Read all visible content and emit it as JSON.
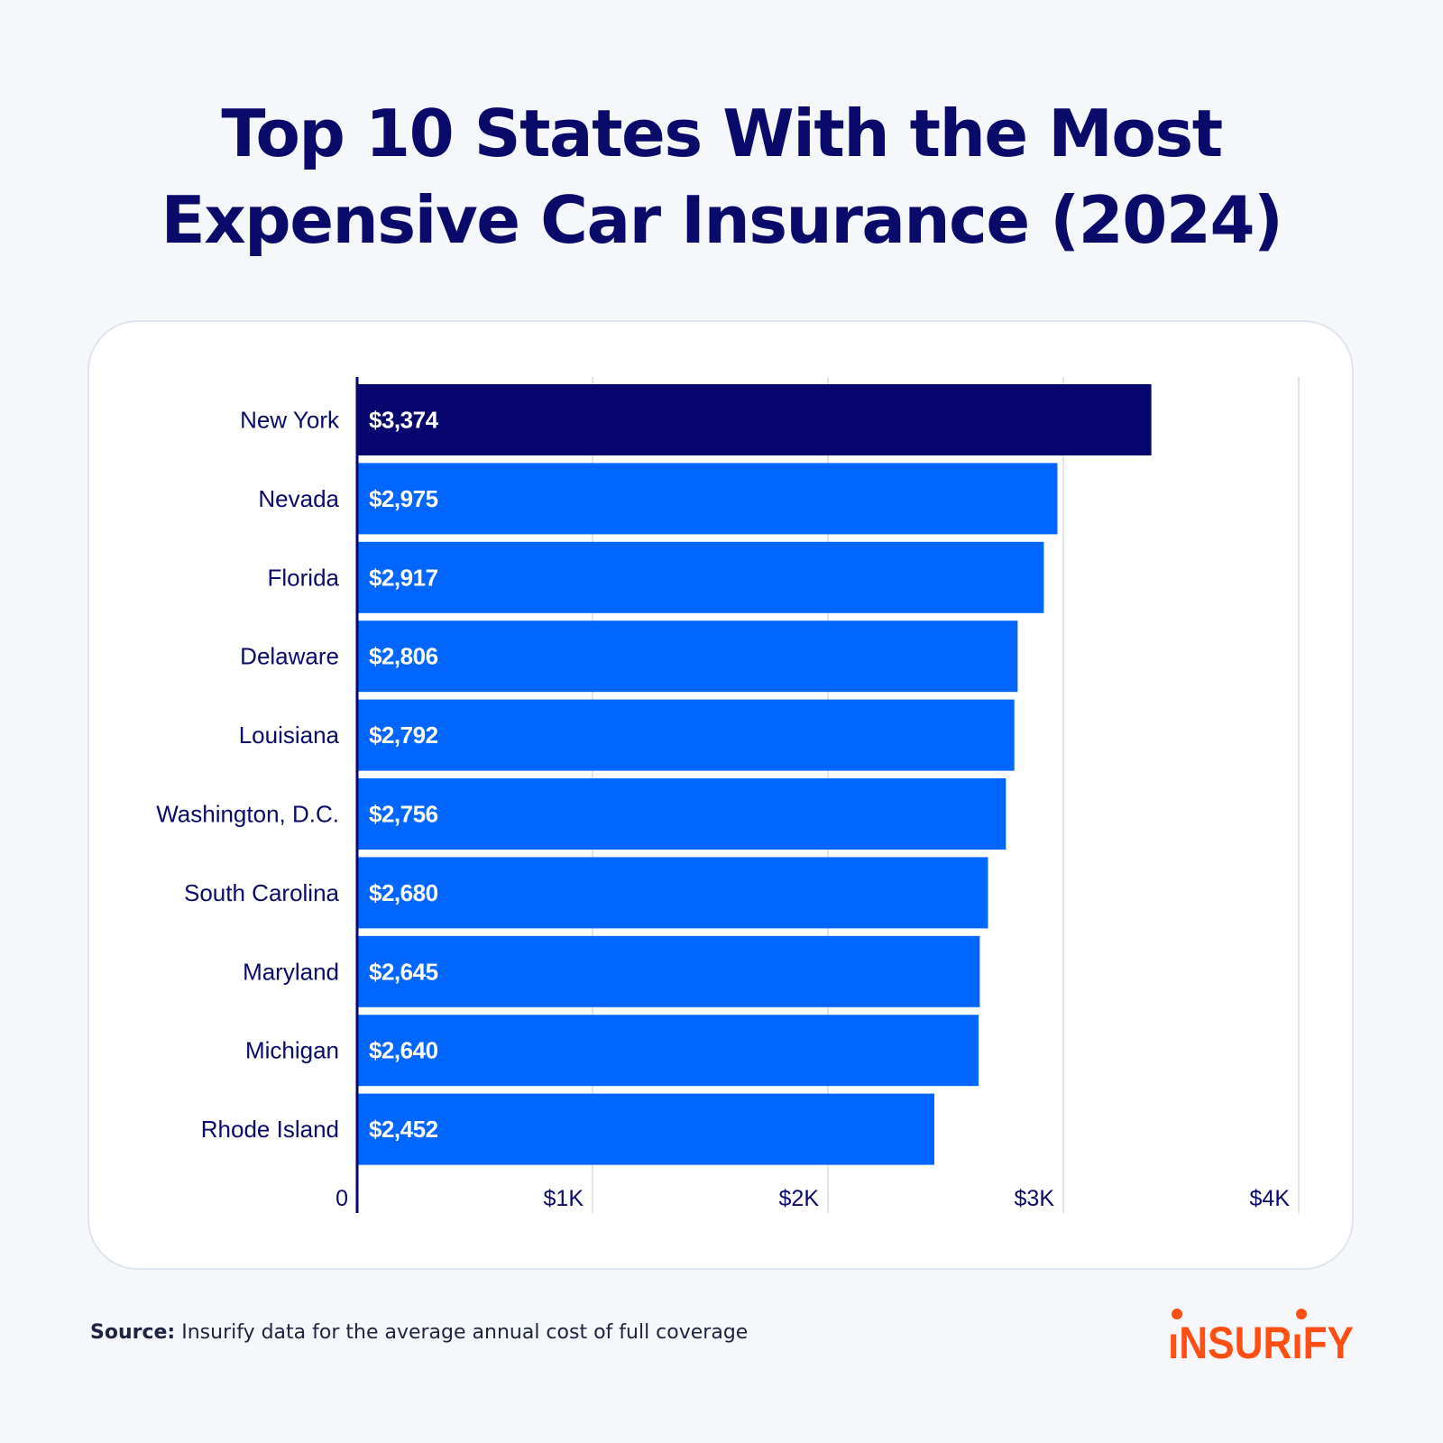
{
  "title_lines": [
    "Top 10 States With the Most",
    "Expensive Car Insurance (2024)"
  ],
  "chart_data": {
    "type": "bar",
    "orientation": "horizontal",
    "title": "Top 10 States With the Most Expensive Car Insurance (2024)",
    "categories": [
      "New York",
      "Nevada",
      "Florida",
      "Delaware",
      "Louisiana",
      "Washington, D.C.",
      "South Carolina",
      "Maryland",
      "Michigan",
      "Rhode Island"
    ],
    "values": [
      3374,
      2975,
      2917,
      2806,
      2792,
      2756,
      2680,
      2645,
      2640,
      2452
    ],
    "data_labels": [
      "$3,374",
      "$2,975",
      "$2,917",
      "$2,806",
      "$2,792",
      "$2,756",
      "$2,680",
      "$2,645",
      "$2,640",
      "$2,452"
    ],
    "xlim": [
      0,
      4000
    ],
    "x_ticks": [
      0,
      1000,
      2000,
      3000,
      4000
    ],
    "x_tick_labels": [
      "0",
      "$1K",
      "$2K",
      "$3K",
      "$4K"
    ],
    "grid": "vertical",
    "colors": {
      "highlight": "#07066e",
      "bar": "#0066ff",
      "text": "#0a0a6b",
      "grid": "#dfe3ec"
    }
  },
  "source": {
    "label": "Source:",
    "text": " Insurify data for the average annual cost of full coverage"
  },
  "logo": {
    "text": "INSURIFY",
    "color": "#ff4f12"
  }
}
